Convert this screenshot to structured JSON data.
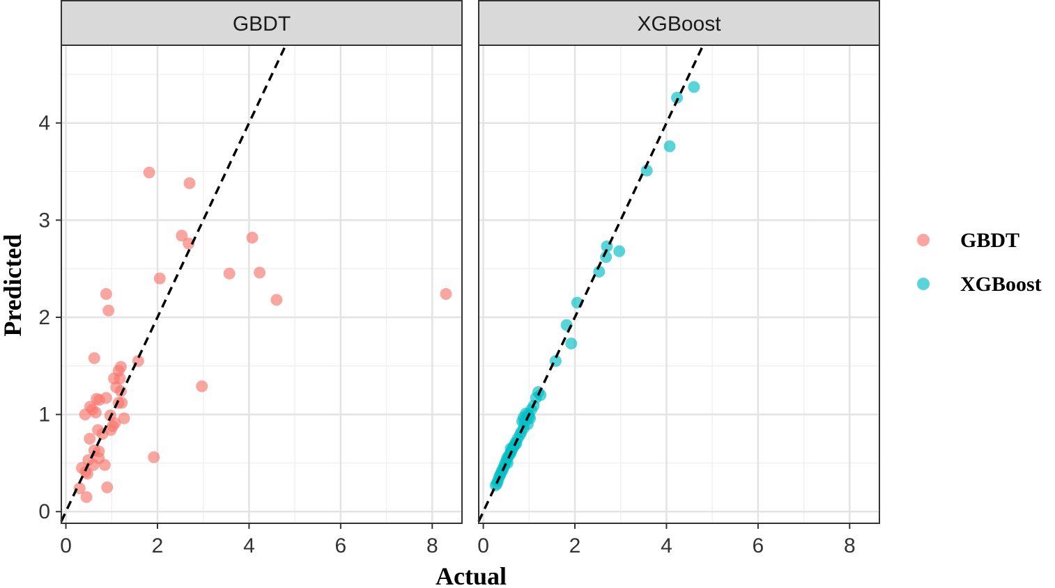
{
  "chart_data": {
    "type": "scatter",
    "xlabel": "Actual",
    "ylabel": "Predicted",
    "xlim": [
      -0.1,
      8.65
    ],
    "ylim": [
      -0.12,
      4.8
    ],
    "xticks": [
      0,
      2,
      4,
      6,
      8
    ],
    "yticks": [
      0,
      1,
      2,
      3,
      4
    ],
    "grid": true,
    "reference_line": "y = x (dashed)",
    "legend": {
      "position": "right",
      "entries": [
        {
          "label": "GBDT",
          "color": "#F8766D"
        },
        {
          "label": "XGBoost",
          "color": "#00BFC4"
        }
      ]
    },
    "panels": [
      {
        "title": "GBDT",
        "series": "GBDT",
        "color": "#F8766D",
        "points": [
          [
            1.82,
            3.49
          ],
          [
            2.7,
            3.38
          ],
          [
            2.53,
            2.84
          ],
          [
            2.68,
            2.76
          ],
          [
            4.07,
            2.82
          ],
          [
            2.05,
            2.4
          ],
          [
            3.57,
            2.45
          ],
          [
            4.23,
            2.46
          ],
          [
            4.6,
            2.18
          ],
          [
            8.3,
            2.24
          ],
          [
            0.88,
            2.24
          ],
          [
            0.93,
            2.07
          ],
          [
            0.62,
            1.58
          ],
          [
            1.58,
            1.55
          ],
          [
            1.2,
            1.49
          ],
          [
            1.15,
            1.45
          ],
          [
            1.05,
            1.37
          ],
          [
            1.18,
            1.37
          ],
          [
            1.1,
            1.28
          ],
          [
            1.2,
            1.24
          ],
          [
            0.88,
            1.17
          ],
          [
            0.67,
            1.16
          ],
          [
            0.73,
            1.15
          ],
          [
            1.15,
            1.12
          ],
          [
            1.22,
            1.12
          ],
          [
            0.53,
            1.08
          ],
          [
            0.58,
            1.05
          ],
          [
            0.65,
            1.02
          ],
          [
            0.42,
            1.0
          ],
          [
            0.97,
            0.99
          ],
          [
            1.27,
            0.96
          ],
          [
            1.07,
            0.91
          ],
          [
            1.02,
            0.88
          ],
          [
            0.98,
            0.84
          ],
          [
            0.7,
            0.84
          ],
          [
            0.8,
            0.8
          ],
          [
            0.52,
            0.75
          ],
          [
            0.62,
            0.63
          ],
          [
            0.72,
            0.62
          ],
          [
            0.72,
            0.55
          ],
          [
            0.49,
            0.53
          ],
          [
            0.6,
            0.48
          ],
          [
            0.85,
            0.48
          ],
          [
            0.35,
            0.45
          ],
          [
            0.43,
            0.41
          ],
          [
            0.47,
            0.39
          ],
          [
            1.92,
            0.56
          ],
          [
            2.97,
            1.29
          ],
          [
            0.3,
            0.24
          ],
          [
            0.9,
            0.25
          ],
          [
            0.45,
            0.15
          ]
        ]
      },
      {
        "title": "XGBoost",
        "series": "XGBoost",
        "color": "#00BFC4",
        "points": [
          [
            4.6,
            4.37
          ],
          [
            4.23,
            4.26
          ],
          [
            4.07,
            3.76
          ],
          [
            3.57,
            3.51
          ],
          [
            2.7,
            2.73
          ],
          [
            2.97,
            2.68
          ],
          [
            2.68,
            2.62
          ],
          [
            2.53,
            2.47
          ],
          [
            2.05,
            2.15
          ],
          [
            1.82,
            1.92
          ],
          [
            1.92,
            1.73
          ],
          [
            1.58,
            1.55
          ],
          [
            1.2,
            1.23
          ],
          [
            1.25,
            1.2
          ],
          [
            1.15,
            1.17
          ],
          [
            1.1,
            1.09
          ],
          [
            1.05,
            1.05
          ],
          [
            0.98,
            1.0
          ],
          [
            0.93,
            1.01
          ],
          [
            0.88,
            0.97
          ],
          [
            1.02,
            0.96
          ],
          [
            0.85,
            0.93
          ],
          [
            0.97,
            0.9
          ],
          [
            0.88,
            0.86
          ],
          [
            0.83,
            0.82
          ],
          [
            0.8,
            0.79
          ],
          [
            0.75,
            0.75
          ],
          [
            0.7,
            0.71
          ],
          [
            0.68,
            0.68
          ],
          [
            0.65,
            0.66
          ],
          [
            0.62,
            0.63
          ],
          [
            0.6,
            0.61
          ],
          [
            0.58,
            0.59
          ],
          [
            0.55,
            0.57
          ],
          [
            0.52,
            0.55
          ],
          [
            0.5,
            0.52
          ],
          [
            0.47,
            0.49
          ],
          [
            0.45,
            0.46
          ],
          [
            0.42,
            0.43
          ],
          [
            0.4,
            0.41
          ],
          [
            0.37,
            0.38
          ],
          [
            0.35,
            0.36
          ],
          [
            0.32,
            0.32
          ],
          [
            0.3,
            0.29
          ],
          [
            0.27,
            0.27
          ],
          [
            0.6,
            0.65
          ],
          [
            0.72,
            0.7
          ],
          [
            0.9,
            0.92
          ],
          [
            1.0,
            0.98
          ],
          [
            0.53,
            0.5
          ]
        ]
      }
    ]
  }
}
